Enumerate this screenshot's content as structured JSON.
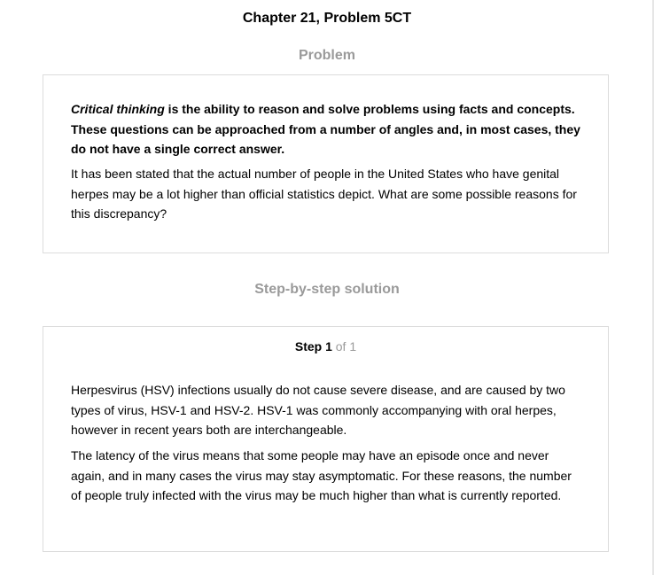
{
  "header": {
    "chapter_title": "Chapter 21, Problem 5CT"
  },
  "problem": {
    "heading": "Problem",
    "intro_emphasis": "Critical thinking",
    "intro_rest": " is the ability to reason and solve problems using facts and concepts. These questions can be approached from a number of angles and, in most cases, they do not have a single correct answer.",
    "question": "It has been stated that the actual number of people in the United States who have genital herpes may be a lot higher than official statistics depict. What are some possible reasons for this discrepancy?"
  },
  "solution": {
    "heading": "Step-by-step solution",
    "step_word": "Step 1",
    "step_of": " of 1",
    "paragraphs": [
      "Herpesvirus (HSV) infections usually do not cause severe disease, and are caused by two types of virus, HSV-1 and HSV-2. HSV-1 was commonly accompanying with oral herpes, however in recent years both are interchangeable.",
      "The latency of the virus means that some people may have an episode once and never again, and in many cases the virus may stay asymptomatic. For these reasons, the number of people truly infected with the virus may be much higher than what is currently reported."
    ]
  }
}
